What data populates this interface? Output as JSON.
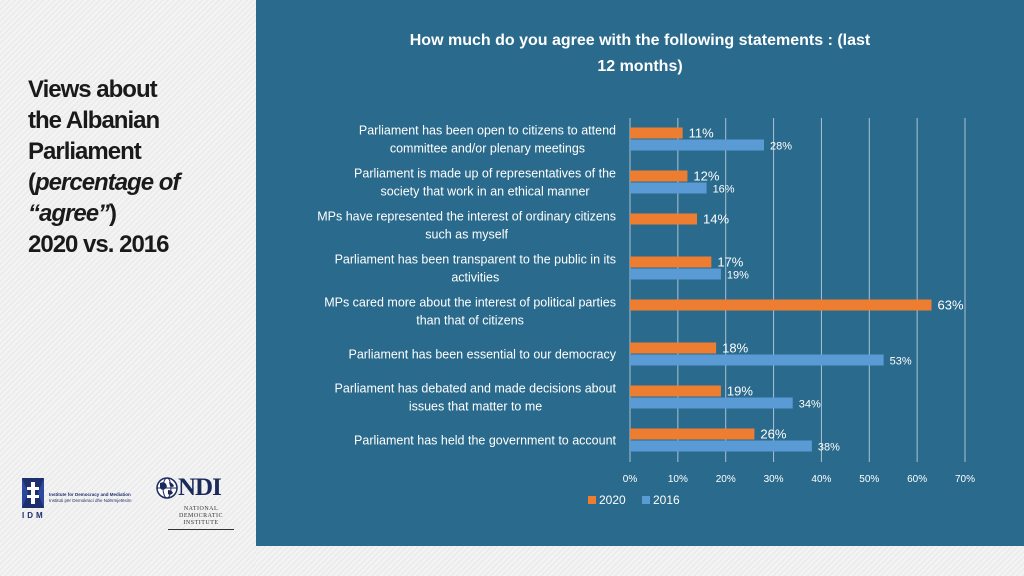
{
  "slide": {
    "title_line1": "Views about",
    "title_line2": "the Albanian",
    "title_line3": "Parliament",
    "title_line4_open": "(",
    "title_line4_italic": "percentage of",
    "title_line5_italic": "“agree”",
    "title_line5_close": ")",
    "title_line6": "2020 vs. 2016"
  },
  "logos": {
    "idm": {
      "abbr": "IDM",
      "name_en": "Institute for Democracy and Mediation",
      "name_sq": "Instituti për Demokraci dhe Ndërmjetësim"
    },
    "ndi": {
      "word": "NDI",
      "line1": "NATIONAL",
      "line2": "DEMOCRATIC",
      "line3": "INSTITUTE"
    }
  },
  "colors": {
    "panel_bg": "#2a6a8c",
    "series_2020": "#ed7d31",
    "series_2016": "#5b9bd5",
    "gridline": "#a9c3d3"
  },
  "chart_data": {
    "type": "bar",
    "orientation": "horizontal",
    "title_line1": "How much do you agree with the following statements : (last",
    "title_line2": "12 months)",
    "categories": [
      [
        "Parliament has been open to citizens to attend",
        "committee and/or plenary meetings"
      ],
      [
        "Parliament is made up of representatives of the",
        "society that work in an ethical manner"
      ],
      [
        "MPs have represented the interest of ordinary citizens",
        "such as myself"
      ],
      [
        "Parliament has been transparent to the public in its",
        "activities"
      ],
      [
        "MPs cared more about the interest of political parties",
        "than that of citizens"
      ],
      [
        "Parliament has been essential to our democracy"
      ],
      [
        "Parliament has debated and made decisions about",
        "issues that matter to me"
      ],
      [
        "Parliament has held the government to account"
      ]
    ],
    "series": [
      {
        "name": "2020",
        "values": [
          11,
          12,
          14,
          17,
          63,
          18,
          19,
          26
        ],
        "labels": [
          "11%",
          "12%",
          "14%",
          "17%",
          "63%",
          "18%",
          "19%",
          "26%"
        ]
      },
      {
        "name": "2016",
        "values": [
          28,
          16,
          null,
          19,
          null,
          53,
          34,
          38
        ],
        "labels": [
          "28%",
          "16%",
          "",
          "19%",
          "",
          "53%",
          "34%",
          "38%"
        ]
      }
    ],
    "xlim": [
      0,
      70
    ],
    "xticks": [
      0,
      10,
      20,
      30,
      40,
      50,
      60,
      70
    ],
    "xtick_labels": [
      "0%",
      "10%",
      "20%",
      "30%",
      "40%",
      "50%",
      "60%",
      "70%"
    ],
    "grid": true,
    "legend": "bottom"
  }
}
